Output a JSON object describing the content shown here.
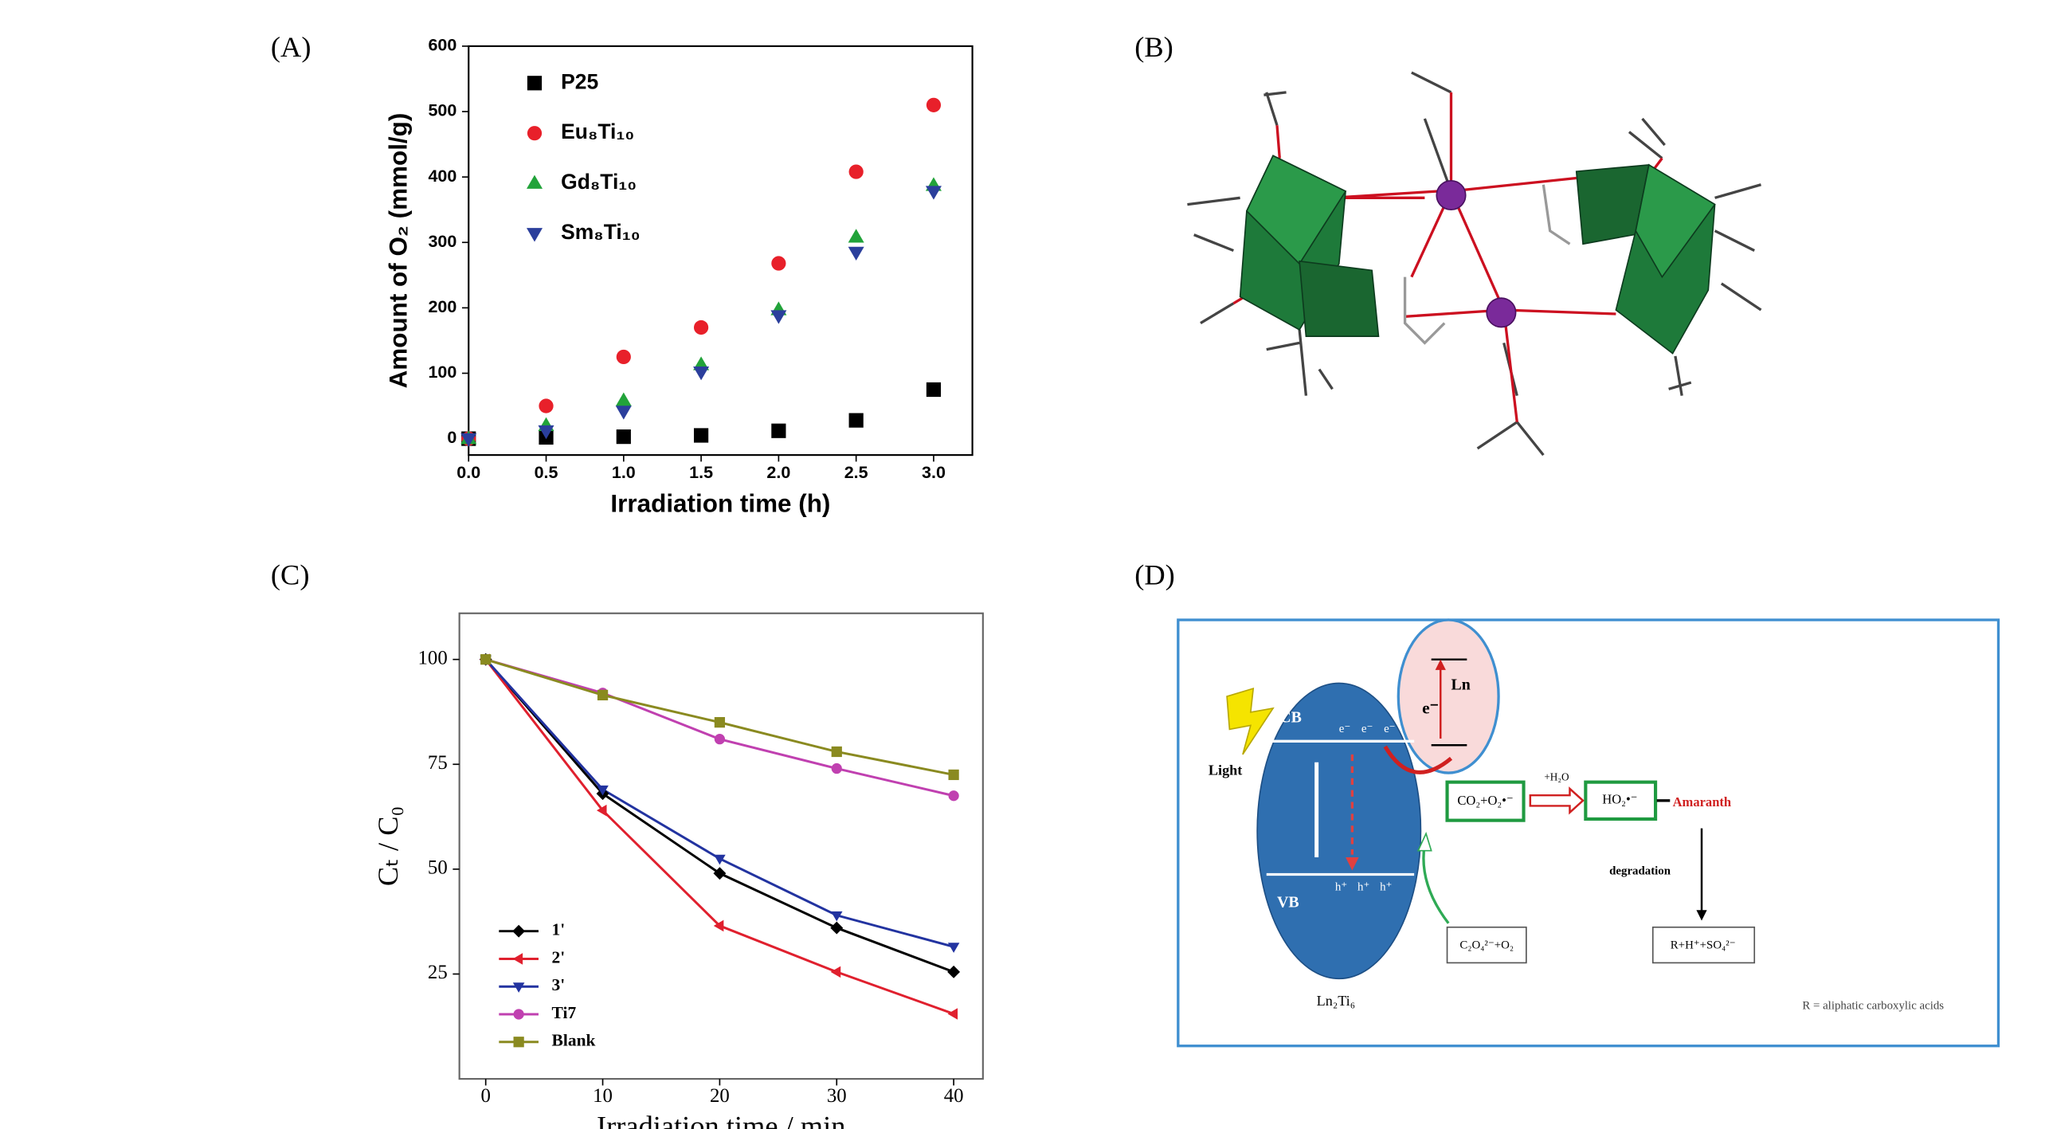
{
  "panel_labels": [
    "(A)",
    "(B)",
    "(C)",
    "(D)"
  ],
  "chart_data": [
    {
      "type": "scatter",
      "x_label": "Irradiation time (h)",
      "y_label": "Amount of O₂ (mmol/g)",
      "x": [
        0,
        0.5,
        1,
        1.5,
        2,
        2.5,
        3
      ],
      "xlim": [
        0,
        3.25
      ],
      "ylim": [
        -25,
        600
      ],
      "xticks": [
        {
          "value": 0,
          "label": "0.0"
        },
        0.5,
        {
          "value": 1,
          "label": "1.0"
        },
        1.5,
        {
          "value": 2,
          "label": "2.0"
        },
        2.5,
        {
          "value": 3,
          "label": "3.0"
        }
      ],
      "yticks": [
        0,
        100,
        200,
        300,
        400,
        500,
        600
      ],
      "legend": "upper left",
      "series": [
        {
          "name": "P25",
          "color": "#000000",
          "marker": "square",
          "values": [
            0,
            2,
            3,
            5,
            12,
            28,
            75
          ]
        },
        {
          "name": "Eu₈Ti₁₀",
          "color": "#e8202a",
          "marker": "circle",
          "values": [
            0,
            50,
            125,
            170,
            268,
            408,
            510
          ]
        },
        {
          "name": "Gd₈Ti₁₀",
          "color": "#22a33a",
          "marker": "triangle-up",
          "values": [
            0,
            20,
            58,
            113,
            197,
            308,
            387
          ]
        },
        {
          "name": "Sm₈Ti₁₀",
          "color": "#2b3f9c",
          "marker": "triangle-down",
          "values": [
            0,
            12,
            42,
            102,
            188,
            285,
            378
          ]
        }
      ]
    },
    {
      "type": "line",
      "x_label": "Irradiation time / min",
      "y_label": "Cₜ / C₀",
      "x": [
        0,
        10,
        20,
        30,
        40
      ],
      "xlim": [
        -2.25,
        42.5
      ],
      "ylim": [
        0,
        111
      ],
      "xticks": [
        0,
        10,
        20,
        30,
        40
      ],
      "yticks": [
        25,
        50,
        75,
        100
      ],
      "legend": "lower left",
      "series": [
        {
          "name": "1'",
          "color": "#000000",
          "marker": "diamond",
          "values": [
            100,
            68,
            49,
            36,
            25.5
          ]
        },
        {
          "name": "2'",
          "color": "#e0202e",
          "marker": "triangle-left",
          "values": [
            100,
            64,
            36.5,
            25.5,
            15.5
          ]
        },
        {
          "name": "3'",
          "color": "#2233a0",
          "marker": "triangle-down",
          "values": [
            100,
            69,
            52.5,
            39,
            31.5
          ]
        },
        {
          "name": "Ti7",
          "color": "#c040b0",
          "marker": "circle",
          "values": [
            100,
            92,
            81,
            74,
            67.5
          ]
        },
        {
          "name": "Blank",
          "color": "#8a8a20",
          "marker": "square",
          "values": [
            100,
            91.5,
            85,
            78,
            72.5
          ]
        }
      ]
    }
  ],
  "diagram": {
    "cb": "CB",
    "vb": "VB",
    "cb_electrons": [
      "e⁻",
      "e⁻",
      "e⁻"
    ],
    "vb_holes": [
      "h⁺",
      "h⁺",
      "h⁺"
    ],
    "ln": "Ln",
    "electron": "e⁻",
    "light": "Light",
    "semiconductor": "Ln₂Ti₆",
    "product": "CO₂+O₂•⁻",
    "water": "+H₂O",
    "radical": "HO₂•⁻",
    "dye": "Amaranth",
    "degradation": "degradation",
    "oxalate": "C₂O₄²⁻+O₂",
    "final": "R+H⁺+SO₄²⁻",
    "note": "R = aliphatic carboxylic acids"
  }
}
